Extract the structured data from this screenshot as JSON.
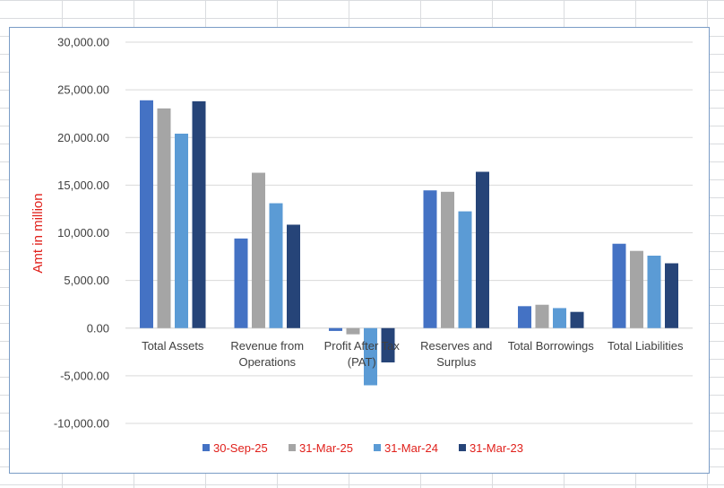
{
  "chart_data": {
    "type": "bar",
    "title": "",
    "xlabel": "",
    "ylabel": "Amt in million",
    "ylim": [
      -10000,
      30000
    ],
    "yticks": [
      "30,000.00",
      "25,000.00",
      "20,000.00",
      "15,000.00",
      "10,000.00",
      "5,000.00",
      "0.00",
      "-5,000.00",
      "-10,000.00"
    ],
    "categories": [
      [
        "Total Assets"
      ],
      [
        "Revenue from",
        "Operations"
      ],
      [
        "Profit After Tax",
        "(PAT)"
      ],
      [
        "Reserves and",
        "Surplus"
      ],
      [
        "Total Borrowings"
      ],
      [
        "Total Liabilities"
      ]
    ],
    "series": [
      {
        "name": "30-Sep-25",
        "color": "#4472c4",
        "values": [
          23900,
          9400,
          -300,
          14450,
          2300,
          8850
        ]
      },
      {
        "name": "31-Mar-25",
        "color": "#a5a5a5",
        "values": [
          23050,
          16300,
          -650,
          14300,
          2450,
          8100
        ]
      },
      {
        "name": "31-Mar-24",
        "color": "#5b9bd5",
        "values": [
          20400,
          13100,
          -6000,
          12250,
          2100,
          7600
        ]
      },
      {
        "name": "31-Mar-23",
        "color": "#264478",
        "values": [
          23800,
          10850,
          -3600,
          16400,
          1700,
          6800
        ]
      }
    ],
    "legend_position": "bottom",
    "grid": true
  }
}
